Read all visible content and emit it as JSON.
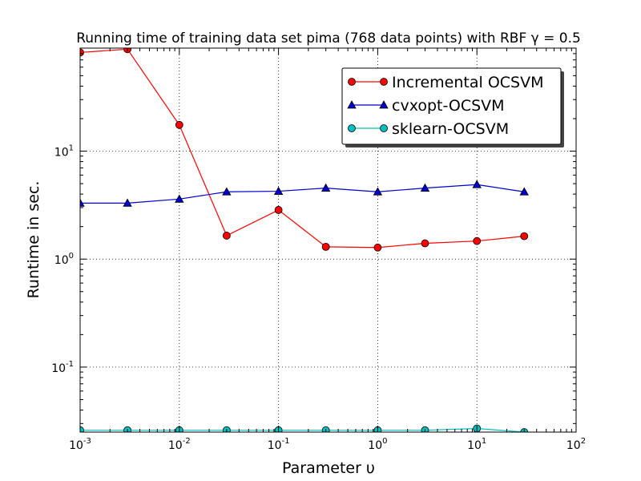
{
  "chart_data": {
    "type": "line",
    "title": "Running time of training data set pima (768 data points) with RBF γ = 0.5",
    "xlabel": "Parameter υ",
    "ylabel": "Runtime in sec.",
    "xscale": "log",
    "yscale": "log",
    "xlim": [
      0.001,
      100
    ],
    "ylim": [
      0.025,
      90
    ],
    "grid": true,
    "legend_position": "top-right",
    "x_ticks": [
      {
        "base": "10",
        "exp": "-3",
        "value": 0.001
      },
      {
        "base": "10",
        "exp": "-2",
        "value": 0.01
      },
      {
        "base": "10",
        "exp": "-1",
        "value": 0.1
      },
      {
        "base": "10",
        "exp": "0",
        "value": 1
      },
      {
        "base": "10",
        "exp": "1",
        "value": 10
      },
      {
        "base": "10",
        "exp": "2",
        "value": 100
      }
    ],
    "y_ticks": [
      {
        "base": "10",
        "exp": "-1",
        "value": 0.1
      },
      {
        "base": "10",
        "exp": "0",
        "value": 1
      },
      {
        "base": "10",
        "exp": "1",
        "value": 10
      }
    ],
    "x": [
      0.001,
      0.003,
      0.01,
      0.03,
      0.1,
      0.3,
      1,
      3,
      10,
      30
    ],
    "series": [
      {
        "name": "Incremental OCSVM",
        "color": "#ff0000",
        "marker": "circle",
        "values": [
          82,
          88,
          17.5,
          1.65,
          2.85,
          1.3,
          1.28,
          1.4,
          1.47,
          1.63
        ]
      },
      {
        "name": "cvxopt-OCSVM",
        "color": "#0000cc",
        "marker": "triangle",
        "values": [
          3.3,
          3.3,
          3.6,
          4.2,
          4.25,
          4.55,
          4.2,
          4.55,
          4.9,
          4.2
        ]
      },
      {
        "name": "sklearn-OCSVM",
        "color": "#00bfbf",
        "marker": "circle",
        "values": [
          0.026,
          0.026,
          0.026,
          0.026,
          0.026,
          0.026,
          0.026,
          0.026,
          0.027,
          0.025
        ]
      }
    ]
  }
}
